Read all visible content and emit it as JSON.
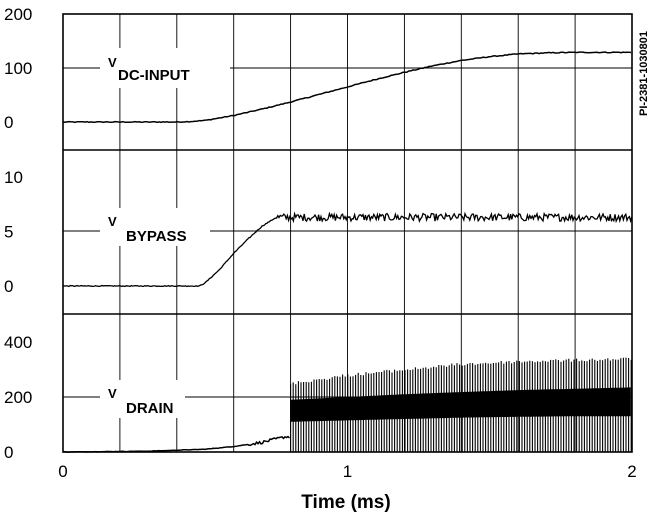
{
  "chart_data": {
    "type": "line",
    "xlabel": "Time (ms)",
    "x_ticks": [
      "0",
      "1",
      "2"
    ],
    "xlim": [
      0,
      2
    ],
    "figure_id": "PI-2381-1030801",
    "grid": true,
    "panels": [
      {
        "name": "V_DC-INPUT",
        "label": {
          "main": "V",
          "sub": "DC-INPUT"
        },
        "y_ticks": [
          "0",
          "100",
          "200"
        ],
        "ylim": [
          0,
          200
        ],
        "series": {
          "x": [
            0,
            0.4,
            0.45,
            0.5,
            0.6,
            0.7,
            0.8,
            0.9,
            1.0,
            1.1,
            1.2,
            1.3,
            1.4,
            1.5,
            1.6,
            1.7,
            1.8,
            1.9,
            2.0
          ],
          "y": [
            0,
            0,
            1,
            3,
            12,
            24,
            37,
            51,
            65,
            79,
            92,
            104,
            114,
            121,
            126,
            128,
            129,
            129,
            129
          ]
        }
      },
      {
        "name": "V_BYPASS",
        "label": {
          "main": "V",
          "sub": "BYPASS"
        },
        "y_ticks": [
          "0",
          "5",
          "10"
        ],
        "ylim": [
          0,
          10
        ],
        "series": {
          "x": [
            0,
            0.48,
            0.5,
            0.55,
            0.6,
            0.65,
            0.7,
            0.75,
            0.8,
            1.0,
            1.5,
            2.0
          ],
          "y": [
            0,
            0,
            0.3,
            1.5,
            3.0,
            4.3,
            5.5,
            6.3,
            6.3,
            6.3,
            6.3,
            6.3
          ],
          "ripple": 0.35
        }
      },
      {
        "name": "V_DRAIN",
        "label": {
          "main": "V",
          "sub": "DRAIN"
        },
        "y_ticks": [
          "0",
          "200",
          "400"
        ],
        "ylim": [
          0,
          400
        ],
        "series": {
          "x": [
            0,
            0.3,
            0.5,
            0.6,
            0.7,
            0.78,
            0.8,
            1.0,
            1.2,
            1.4,
            1.6,
            1.8,
            2.0
          ],
          "y": [
            0,
            3,
            10,
            20,
            35,
            55,
            55,
            55,
            55,
            55,
            55,
            55,
            55
          ],
          "switching_start": 0.8,
          "envelope_top": {
            "x": [
              0.8,
              1.0,
              1.2,
              1.4,
              1.6,
              1.8,
              2.0
            ],
            "y": [
              255,
              285,
              305,
              325,
              335,
              340,
              345
            ]
          },
          "band_top": {
            "x": [
              0.8,
              1.0,
              1.2,
              1.4,
              1.6,
              1.8,
              2.0
            ],
            "y": [
              190,
              200,
              210,
              218,
              225,
              230,
              235
            ]
          },
          "band_bottom": {
            "x": [
              0.8,
              1.0,
              1.2,
              1.4,
              1.6,
              1.8,
              2.0
            ],
            "y": [
              110,
              115,
              120,
              125,
              128,
              130,
              130
            ]
          }
        }
      }
    ]
  }
}
